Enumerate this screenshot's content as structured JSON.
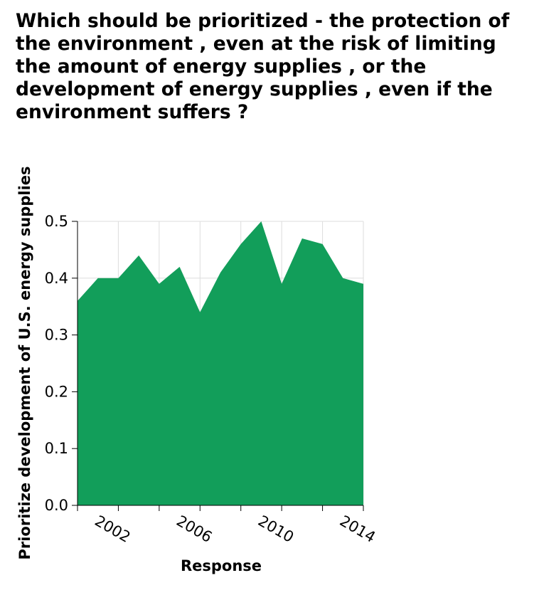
{
  "chart_data": {
    "type": "area",
    "title": "Which should be prioritized - the protection of the environment , even at the risk of limiting the amount of energy supplies , or the development of energy supplies , even if the environment suffers ?",
    "xlabel": "Response",
    "ylabel": "Prioritize development of U.S. energy supplies",
    "x": [
      2001,
      2002,
      2003,
      2004,
      2005,
      2006,
      2007,
      2008,
      2009,
      2010,
      2011,
      2012,
      2013,
      2014,
      2015
    ],
    "values": [
      0.36,
      0.4,
      0.4,
      0.44,
      0.39,
      0.42,
      0.34,
      0.41,
      0.46,
      0.5,
      0.39,
      0.47,
      0.46,
      0.4,
      0.39
    ],
    "xticks": [
      2002,
      2006,
      2010,
      2014
    ],
    "xtick_labels": [
      "2002",
      "2006",
      "2010",
      "2014"
    ],
    "yticks": [
      0.0,
      0.1,
      0.2,
      0.3,
      0.4,
      0.5
    ],
    "ytick_labels": [
      "0.0",
      "0.1",
      "0.2",
      "0.3",
      "0.4",
      "0.5"
    ],
    "xlim": [
      2001,
      2015
    ],
    "ylim": [
      0,
      0.5
    ],
    "grid": true,
    "fill_color": "#129e5a",
    "grid_color": "#dddddd"
  }
}
